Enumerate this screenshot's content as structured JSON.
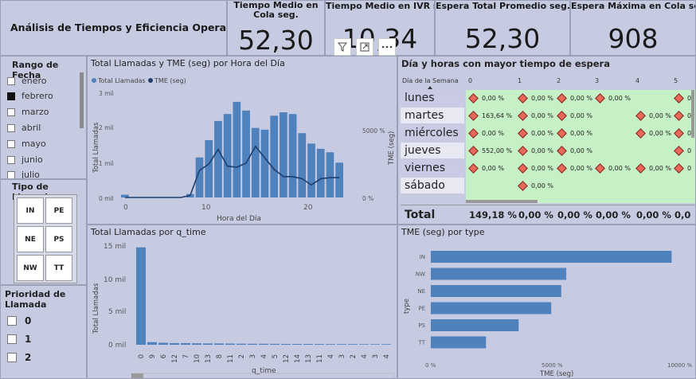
{
  "report_title": "Análisis de Tiempos y Eficiencia Operativa\"",
  "kpis": [
    {
      "label": "Tiempo Medio en Cola seg.",
      "value": "52,30"
    },
    {
      "label": "Tiempo Medio en IVR seg.",
      "value": "10,34"
    },
    {
      "label": "Espera Total Promedio seg.",
      "value": "52,30"
    },
    {
      "label": "Espera Máxima en Cola seg",
      "value": "908"
    }
  ],
  "date_slicer": {
    "title": "Rango de Fecha",
    "months": [
      {
        "label": "enero",
        "checked": false
      },
      {
        "label": "febrero",
        "checked": true
      },
      {
        "label": "marzo",
        "checked": false
      },
      {
        "label": "abril",
        "checked": false
      },
      {
        "label": "mayo",
        "checked": false
      },
      {
        "label": "junio",
        "checked": false
      },
      {
        "label": "julio",
        "checked": false
      }
    ]
  },
  "type_slicer": {
    "title": "Tipo de Llamada",
    "buttons": [
      "IN",
      "PE",
      "NE",
      "PS",
      "NW",
      "TT"
    ]
  },
  "priority_slicer": {
    "title_line1": "Prioridad de",
    "title_line2": "Llamada",
    "options": [
      "0",
      "1",
      "2"
    ]
  },
  "hourly_chart": {
    "title": "Total Llamadas y TME (seg) por Hora del Día",
    "legend": [
      "Total Llamadas",
      "TME (seg)"
    ],
    "ylabel_left": "Total Llamadas",
    "ylabel_right": "TME (seg)",
    "xlabel": "Hora del Día",
    "left_ticks": [
      "3 mil",
      "2 mil",
      "1 mil",
      "0 mil"
    ],
    "right_ticks": [
      "5000 %",
      "0 %"
    ],
    "x_ticks": [
      "0",
      "10",
      "20"
    ]
  },
  "chart_data": [
    {
      "type": "bar",
      "title": "Total Llamadas y TME (seg) por Hora del Día",
      "xlabel": "Hora del Día",
      "ylabel": "Total Llamadas",
      "ylim": [
        0,
        3000
      ],
      "categories": [
        0,
        1,
        2,
        3,
        4,
        5,
        6,
        7,
        8,
        9,
        10,
        11,
        12,
        13,
        14,
        15,
        16,
        17,
        18,
        19,
        20,
        21,
        22,
        23
      ],
      "series": [
        {
          "name": "Total Llamadas",
          "values": [
            80,
            5,
            5,
            5,
            5,
            5,
            5,
            100,
            1150,
            1650,
            2200,
            2400,
            2750,
            2500,
            2000,
            1950,
            2350,
            2450,
            2400,
            1850,
            1550,
            1400,
            1300,
            1000
          ]
        },
        {
          "name": "TME (seg)",
          "axis": "right",
          "ylim_right": [
            0,
            10000
          ],
          "values": [
            0,
            0,
            0,
            0,
            0,
            0,
            0,
            200,
            2600,
            3200,
            4600,
            3000,
            2900,
            3300,
            4900,
            3800,
            2700,
            2000,
            2000,
            1800,
            1200,
            1800,
            1900,
            1900
          ]
        }
      ],
      "right_axis_ticks": [
        "0 %",
        "5000 %"
      ]
    },
    {
      "type": "bar",
      "title": "Total Llamadas por q_time",
      "xlabel": "q_time",
      "ylabel": "Total Llamadas",
      "ylim": [
        0,
        15000
      ],
      "categories": [
        "0",
        "9",
        "6",
        "12",
        "7",
        "10",
        "13",
        "8",
        "11",
        "2",
        "3",
        "4",
        "5",
        "12",
        "14",
        "13",
        "11",
        "4",
        "3",
        "2",
        "4",
        "3",
        "4"
      ],
      "values": [
        14800,
        400,
        300,
        250,
        250,
        220,
        200,
        200,
        180,
        160,
        150,
        150,
        140,
        130,
        120,
        120,
        110,
        100,
        100,
        100,
        90,
        90,
        90
      ]
    },
    {
      "type": "bar",
      "orientation": "horizontal",
      "title": "TME (seg) por type",
      "xlabel": "TME (seg)",
      "ylabel": "type",
      "xlim": [
        0,
        10000
      ],
      "categories": [
        "IN",
        "NW",
        "NE",
        "PE",
        "PS",
        "TT"
      ],
      "values": [
        9600,
        5400,
        5200,
        4800,
        3500,
        2200
      ]
    }
  ],
  "matrix": {
    "title": "Día y horas con mayor tiempo de espera",
    "corner_label": "Día de la Semana",
    "hours": [
      "0",
      "1",
      "2",
      "3",
      "4",
      "5"
    ],
    "rows": [
      {
        "day": "lunes",
        "cells": [
          "0,00 %",
          "0,00 %",
          "0,00 %",
          "0,00 %",
          "",
          "0"
        ]
      },
      {
        "day": "martes",
        "cells": [
          "163,64 %",
          "0,00 %",
          "0,00 %",
          "",
          "0,00 %",
          "0"
        ]
      },
      {
        "day": "miércoles",
        "cells": [
          "0,00 %",
          "0,00 %",
          "0,00 %",
          "",
          "0,00 %",
          "0"
        ]
      },
      {
        "day": "jueves",
        "cells": [
          "552,00 %",
          "0,00 %",
          "0,00 %",
          "",
          "",
          "0"
        ]
      },
      {
        "day": "viernes",
        "cells": [
          "0,00 %",
          "0,00 %",
          "0,00 %",
          "0,00 %",
          "0,00 %",
          "0"
        ]
      },
      {
        "day": "sábado",
        "cells": [
          "",
          "0,00 %",
          "",
          "",
          "",
          ""
        ]
      }
    ],
    "total_label": "Total",
    "totals": [
      "149,18 %",
      "0,00 %",
      "0,00 %",
      "0,00 %",
      "0,00 %",
      "0,0"
    ]
  },
  "qtime_chart": {
    "title": "Total Llamadas por q_time",
    "ylabel": "Total Llamadas",
    "xlabel": "q_time",
    "y_ticks": [
      "15 mil",
      "10 mil",
      "5 mil",
      "0 mil"
    ]
  },
  "type_chart": {
    "title": "TME (seg) por type",
    "ylabel": "type",
    "xlabel": "TME (seg)",
    "x_ticks": [
      "0 %",
      "5000 %",
      "10000 %"
    ]
  },
  "toolbar_icons": [
    "filter-icon",
    "focus-mode-icon",
    "more-options-icon"
  ],
  "colors": {
    "bar": "#4f81bd",
    "line": "#1f3f6e",
    "matrix_bg": "#c6f0c6",
    "marker": "#e8685a"
  }
}
